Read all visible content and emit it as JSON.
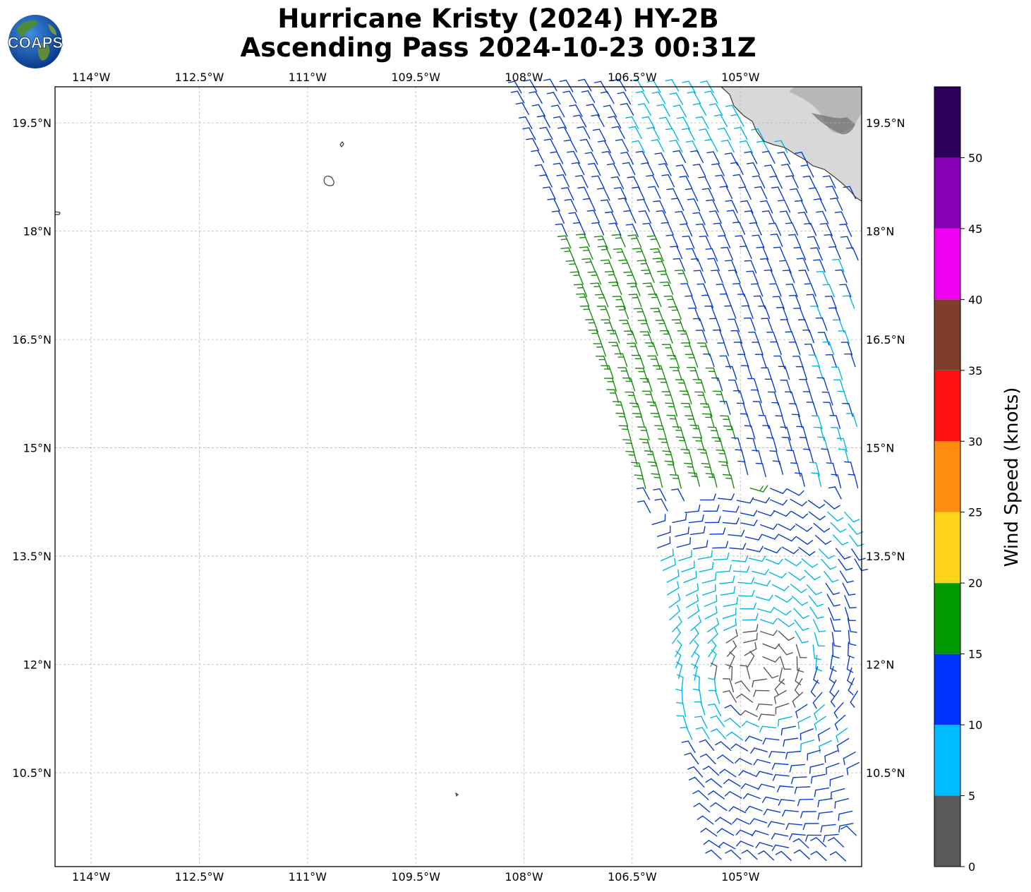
{
  "title": {
    "line1": "Hurricane Kristy (2024) HY-2B",
    "line2": "Ascending Pass 2024-10-23 00:31Z"
  },
  "logo": {
    "text": "COAPS",
    "icon": "globe-logo-icon"
  },
  "map": {
    "lon_range": [
      -114.5,
      -103.32
    ],
    "lat_range": [
      9.2,
      20.0
    ],
    "lon_ticks": [
      {
        "value": -114.0,
        "label": "114°W"
      },
      {
        "value": -112.5,
        "label": "112.5°W"
      },
      {
        "value": -111.0,
        "label": "111°W"
      },
      {
        "value": -109.5,
        "label": "109.5°W"
      },
      {
        "value": -108.0,
        "label": "108°W"
      },
      {
        "value": -106.5,
        "label": "106.5°W"
      },
      {
        "value": -105.0,
        "label": "105°W"
      }
    ],
    "lat_ticks": [
      {
        "value": 19.5,
        "label": "19.5°N"
      },
      {
        "value": 18.0,
        "label": "18°N"
      },
      {
        "value": 16.5,
        "label": "16.5°N"
      },
      {
        "value": 15.0,
        "label": "15°N"
      },
      {
        "value": 13.5,
        "label": "13.5°N"
      },
      {
        "value": 12.0,
        "label": "12°N"
      },
      {
        "value": 10.5,
        "label": "10.5°N"
      }
    ],
    "grid": true,
    "land_color": "#d8d8d8",
    "coast_color": "#3a3a3a"
  },
  "colorbar": {
    "label": "Wind Speed (knots)",
    "bins": [
      {
        "from": 0,
        "to": 5,
        "color": "#595959"
      },
      {
        "from": 5,
        "to": 10,
        "color": "#00bbff"
      },
      {
        "from": 10,
        "to": 15,
        "color": "#0033ff"
      },
      {
        "from": 15,
        "to": 20,
        "color": "#009900"
      },
      {
        "from": 20,
        "to": 25,
        "color": "#ffd41a"
      },
      {
        "from": 25,
        "to": 30,
        "color": "#ff8c0d"
      },
      {
        "from": 30,
        "to": 35,
        "color": "#ff1111"
      },
      {
        "from": 35,
        "to": 40,
        "color": "#803d2a"
      },
      {
        "from": 40,
        "to": 45,
        "color": "#f000f0"
      },
      {
        "from": 45,
        "to": 50,
        "color": "#8800b3"
      },
      {
        "from": 50,
        "to": 55,
        "color": "#2e0059"
      }
    ],
    "tick_labels": [
      "0",
      "5",
      "10",
      "15",
      "20",
      "25",
      "30",
      "35",
      "40",
      "45",
      "50"
    ]
  },
  "barb_colors": {
    "calm": "#595959",
    "light": "#00b7e8",
    "moderate": "#0a3ccc",
    "fresh": "#1a8c10"
  }
}
